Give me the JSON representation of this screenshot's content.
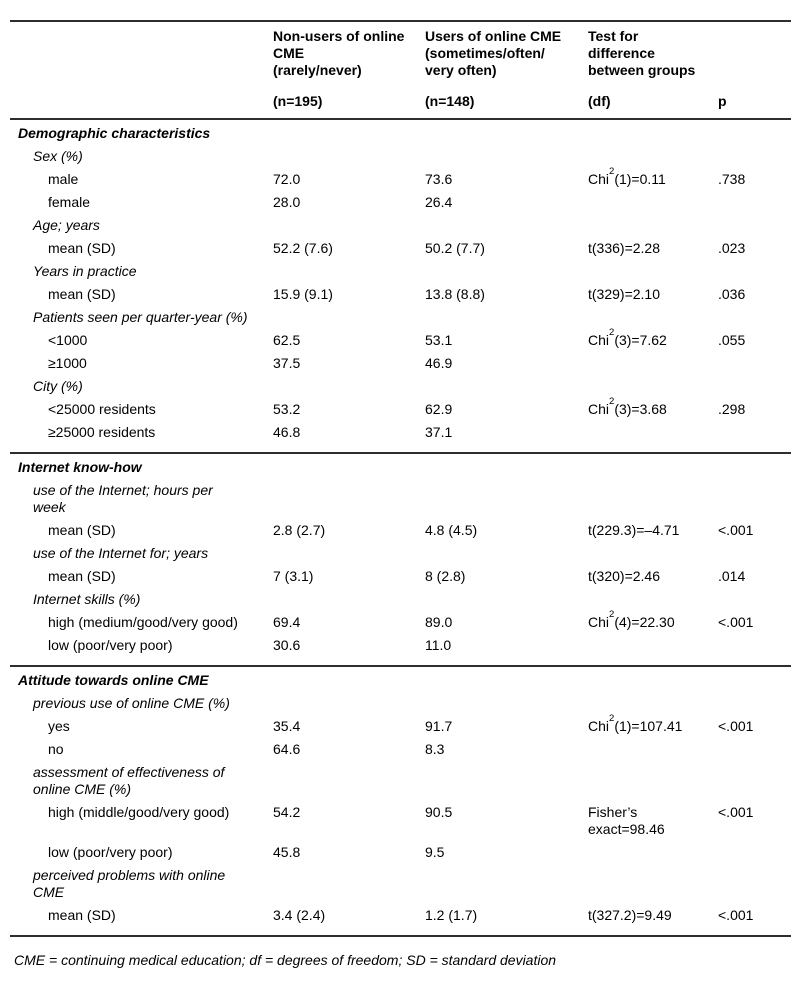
{
  "colors": {
    "text": "#000000",
    "background": "#ffffff",
    "rule": "#2e2e2e"
  },
  "table": {
    "header": {
      "columns": [
        {
          "title_lines": [],
          "sub": ""
        },
        {
          "title_lines": [
            "Non-users of online",
            "CME",
            "(rarely/never)"
          ],
          "sub": "(n=195)"
        },
        {
          "title_lines": [
            "Users of online CME",
            "(sometimes/often/",
            "very often)"
          ],
          "sub": "(n=148)"
        },
        {
          "title_lines": [
            "Test for",
            "difference",
            "between groups"
          ],
          "sub": "(df)"
        },
        {
          "title_lines": [],
          "sub": "p"
        }
      ]
    },
    "sections": [
      {
        "title": "Demographic characteristics",
        "groups": [
          {
            "label": "Sex (%)",
            "rows": [
              {
                "label": "male",
                "nonusers": "72.0",
                "users": "73.6",
                "test": {
                  "pre": "Chi",
                  "sup": "2",
                  "post": "(1)=0.11"
                },
                "p": ".738"
              },
              {
                "label": "female",
                "nonusers": "28.0",
                "users": "26.4",
                "test": null,
                "p": ""
              }
            ]
          },
          {
            "label": "Age; years",
            "rows": [
              {
                "label": "mean (SD)",
                "nonusers": "52.2 (7.6)",
                "users": "50.2 (7.7)",
                "test": {
                  "pre": "t(336)=2.28",
                  "sup": "",
                  "post": ""
                },
                "p": ".023"
              }
            ]
          },
          {
            "label": "Years in practice",
            "rows": [
              {
                "label": "mean (SD)",
                "nonusers": "15.9 (9.1)",
                "users": "13.8 (8.8)",
                "test": {
                  "pre": "t(329)=2.10",
                  "sup": "",
                  "post": ""
                },
                "p": ".036"
              }
            ]
          },
          {
            "label": "Patients seen per quarter-year (%)",
            "rows": [
              {
                "label": "<1000",
                "nonusers": "62.5",
                "users": "53.1",
                "test": {
                  "pre": "Chi",
                  "sup": "2",
                  "post": "(3)=7.62"
                },
                "p": ".055"
              },
              {
                "label": "≥1000",
                "nonusers": "37.5",
                "users": "46.9",
                "test": null,
                "p": ""
              }
            ]
          },
          {
            "label": "City (%)",
            "rows": [
              {
                "label": "<25000 residents",
                "nonusers": "53.2",
                "users": "62.9",
                "test": {
                  "pre": "Chi",
                  "sup": "2",
                  "post": "(3)=3.68"
                },
                "p": ".298"
              },
              {
                "label": "≥25000 residents",
                "nonusers": "46.8",
                "users": "37.1",
                "test": null,
                "p": ""
              }
            ]
          }
        ]
      },
      {
        "title": "Internet know-how",
        "groups": [
          {
            "label": "use of the Internet; hours per week",
            "rows": [
              {
                "label": "mean (SD)",
                "nonusers": "2.8 (2.7)",
                "users": "4.8 (4.5)",
                "test": {
                  "pre": "t(229.3)=–4.71",
                  "sup": "",
                  "post": ""
                },
                "p": "<.001"
              }
            ]
          },
          {
            "label": "use of the Internet for; years",
            "rows": [
              {
                "label": "mean (SD)",
                "nonusers": "7 (3.1)",
                "users": "8 (2.8)",
                "test": {
                  "pre": "t(320)=2.46",
                  "sup": "",
                  "post": ""
                },
                "p": ".014"
              }
            ]
          },
          {
            "label": "Internet skills (%)",
            "rows": [
              {
                "label": "high (medium/good/very good)",
                "nonusers": "69.4",
                "users": "89.0",
                "test": {
                  "pre": "Chi",
                  "sup": "2",
                  "post": "(4)=22.30"
                },
                "p": "<.001"
              },
              {
                "label": "low (poor/very poor)",
                "nonusers": "30.6",
                "users": "11.0",
                "test": null,
                "p": ""
              }
            ]
          }
        ]
      },
      {
        "title": "Attitude towards online CME",
        "groups": [
          {
            "label": "previous use of online CME (%)",
            "rows": [
              {
                "label": "yes",
                "nonusers": "35.4",
                "users": "91.7",
                "test": {
                  "pre": "Chi",
                  "sup": "2",
                  "post": "(1)=107.41"
                },
                "p": "<.001"
              },
              {
                "label": "no",
                "nonusers": "64.6",
                "users": "8.3",
                "test": null,
                "p": ""
              }
            ]
          },
          {
            "label": "assessment of effectiveness of online CME (%)",
            "rows": [
              {
                "label": "high (middle/good/very good)",
                "nonusers": "54.2",
                "users": "90.5",
                "test": {
                  "pre": "Fisher’s exact=98.46",
                  "sup": "",
                  "post": ""
                },
                "p": "<.001"
              },
              {
                "label": "low (poor/very poor)",
                "nonusers": "45.8",
                "users": "9.5",
                "test": null,
                "p": ""
              }
            ]
          },
          {
            "label": "perceived problems with online CME",
            "rows": [
              {
                "label": "mean (SD)",
                "nonusers": "3.4 (2.4)",
                "users": "1.2 (1.7)",
                "test": {
                  "pre": "t(327.2)=9.49",
                  "sup": "",
                  "post": ""
                },
                "p": "<.001"
              }
            ]
          }
        ]
      }
    ],
    "footnote": "CME = continuing medical education; df = degrees of freedom; SD = standard deviation"
  }
}
